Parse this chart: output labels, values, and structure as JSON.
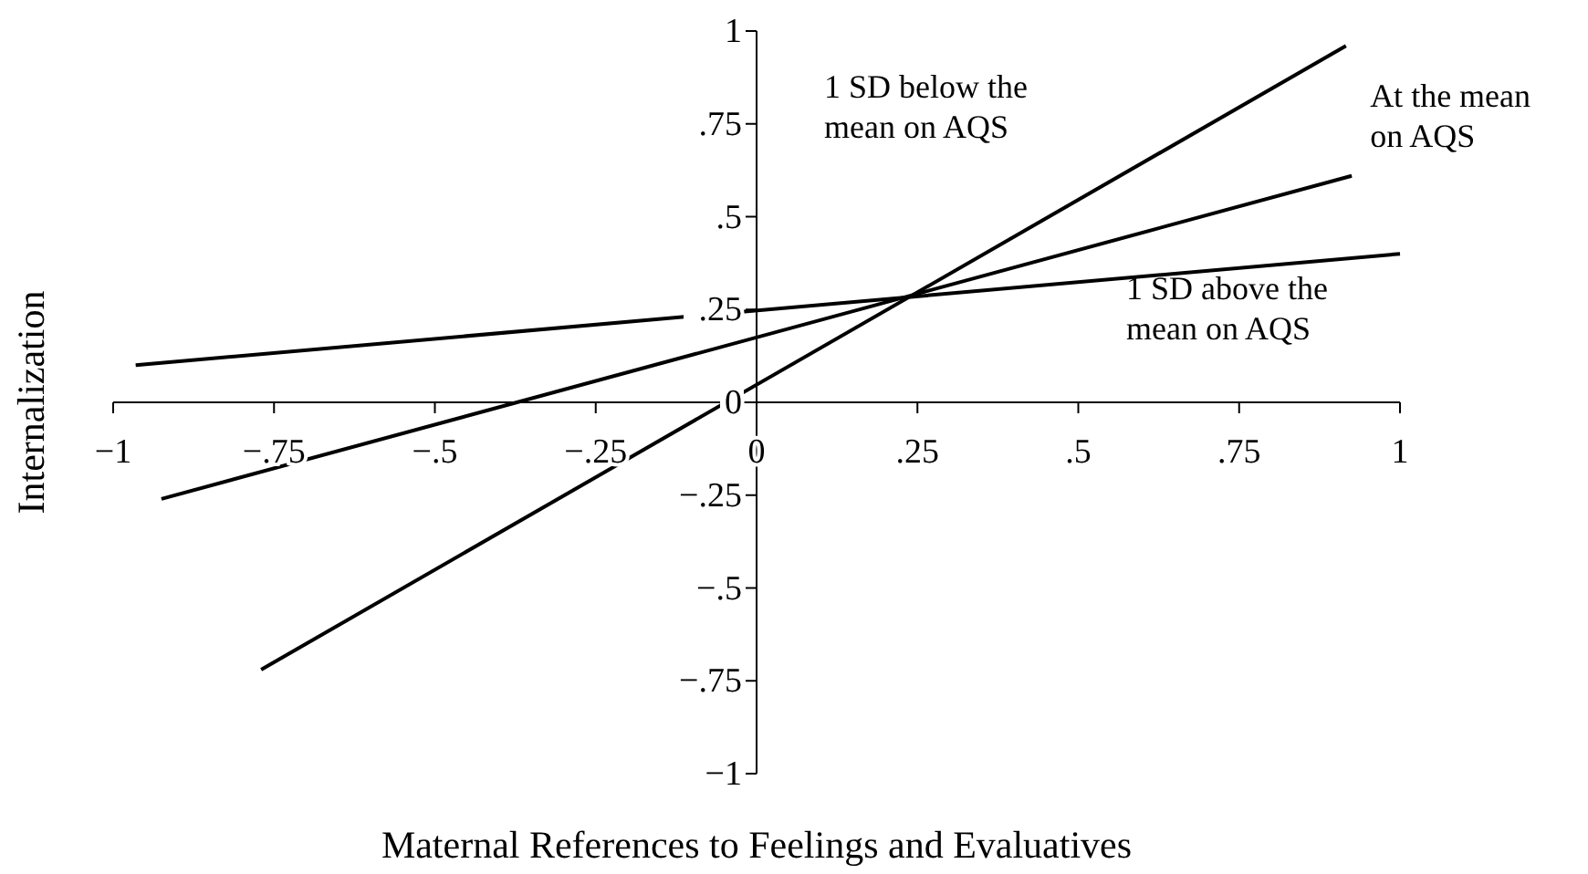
{
  "chart_data": {
    "type": "line",
    "xlabel": "Maternal References to Feelings and Evaluatives",
    "ylabel": "Internalization",
    "series": [
      {
        "name": "1 SD below the mean on AQS",
        "color": "#000000",
        "x": [
          -0.77,
          0.916
        ],
        "values": [
          -0.72,
          0.96
        ]
      },
      {
        "name": "At the mean on AQS",
        "color": "#000000",
        "x": [
          -0.925,
          0.925
        ],
        "values": [
          -0.26,
          0.61
        ]
      },
      {
        "name": "1 SD above the mean on AQS",
        "color": "#000000",
        "x": [
          -0.965,
          1.0
        ],
        "values": [
          0.1,
          0.4
        ]
      }
    ],
    "xlim": [
      -1,
      1
    ],
    "ylim": [
      -1,
      1
    ],
    "xticks": [
      {
        "value": -1,
        "label": "−1"
      },
      {
        "value": -0.75,
        "label": "−.75"
      },
      {
        "value": -0.5,
        "label": "−.5"
      },
      {
        "value": -0.25,
        "label": "−.25"
      },
      0,
      {
        "value": 0.25,
        "label": ".25"
      },
      {
        "value": 0.5,
        "label": ".5"
      },
      {
        "value": 0.75,
        "label": ".75"
      },
      1
    ],
    "yticks": [
      {
        "value": -1,
        "label": "−1"
      },
      {
        "value": -0.75,
        "label": "−.75"
      },
      {
        "value": -0.5,
        "label": "−.5"
      },
      {
        "value": -0.25,
        "label": "−.25"
      },
      0,
      {
        "value": 0.25,
        "label": ".25"
      },
      {
        "value": 0.5,
        "label": ".5"
      },
      {
        "value": 0.75,
        "label": ".75"
      },
      1
    ],
    "line_style": "solid",
    "marker": "none",
    "legend": false,
    "grid": false
  }
}
